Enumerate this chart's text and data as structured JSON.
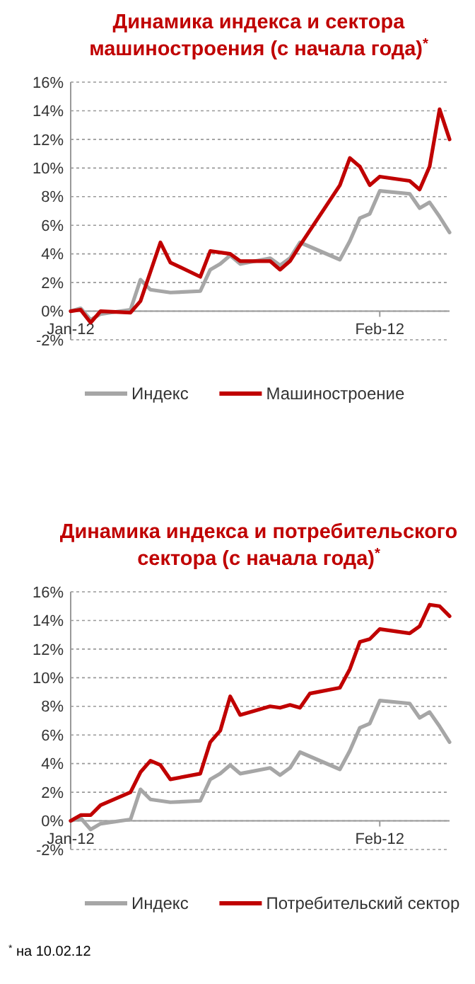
{
  "chart_data": [
    {
      "type": "line",
      "title": "Динамика индекса и сектора машиностроения (с начала года)$^{*}$",
      "x": [
        "2012-01-01",
        "2012-01-02",
        "2012-01-03",
        "2012-01-04",
        "2012-01-07",
        "2012-01-08",
        "2012-01-09",
        "2012-01-11",
        "2012-01-14",
        "2012-01-15",
        "2012-01-16",
        "2012-01-17",
        "2012-01-18",
        "2012-01-21",
        "2012-01-22",
        "2012-01-23",
        "2012-01-24",
        "2012-01-28",
        "2012-01-29",
        "2012-01-30",
        "2012-01-31",
        "2012-02-01",
        "2012-02-04",
        "2012-02-05",
        "2012-02-06",
        "2012-02-07",
        "2012-02-08"
      ],
      "series": [
        {
          "name": "Индекс",
          "color": "#a6a6a6",
          "values": [
            0,
            0.2,
            -0.6,
            -0.2,
            0.1,
            2.2,
            1.5,
            1.3,
            1.4,
            2.9,
            3.3,
            3.9,
            3.3,
            3.7,
            3.2,
            3.7,
            4.8,
            3.6,
            4.9,
            6.5,
            6.8,
            8.4,
            8.2,
            7.2,
            7.6,
            6.6,
            5.5
          ]
        },
        {
          "name": "Машиностроение",
          "color": "#c00000",
          "x": [
            "2012-01-01",
            "2012-01-02",
            "2012-01-03",
            "2012-01-04",
            "2012-01-07",
            "2012-01-08",
            "2012-01-10",
            "2012-01-11",
            "2012-01-14",
            "2012-01-15",
            "2012-01-16",
            "2012-01-17",
            "2012-01-18",
            "2012-01-21",
            "2012-01-22",
            "2012-01-23",
            "2012-01-24",
            "2012-01-28",
            "2012-01-29",
            "2012-01-30",
            "2012-01-31",
            "2012-02-01",
            "2012-02-04",
            "2012-02-05",
            "2012-02-06",
            "2012-02-07",
            "2012-02-08"
          ],
          "values": [
            0,
            0.1,
            -0.8,
            0,
            -0.1,
            0.7,
            4.8,
            3.4,
            2.4,
            4.2,
            4.1,
            4.0,
            3.5,
            3.5,
            2.9,
            3.5,
            4.6,
            8.8,
            10.7,
            10.1,
            8.8,
            9.4,
            9.1,
            8.5,
            10.1,
            14.1,
            12.0
          ]
        }
      ],
      "xlim": [
        "2012-01-01",
        "2012-02-08"
      ],
      "xticks": [
        {
          "value": "2012-01-01",
          "label": "Jan-12"
        },
        {
          "value": "2012-02-01",
          "label": "Feb-12"
        }
      ],
      "ylim": [
        -2,
        16
      ],
      "yticks": [
        {
          "value": -2,
          "label": "-2%"
        },
        {
          "value": 0,
          "label": "0%"
        },
        {
          "value": 2,
          "label": "2%"
        },
        {
          "value": 4,
          "label": "4%"
        },
        {
          "value": 6,
          "label": "6%"
        },
        {
          "value": 8,
          "label": "8%"
        },
        {
          "value": 10,
          "label": "10%"
        },
        {
          "value": 12,
          "label": "12%"
        },
        {
          "value": 14,
          "label": "14%"
        },
        {
          "value": 16,
          "label": "16%"
        }
      ],
      "grid": "y",
      "legend": "bottom",
      "line_style": "solid"
    },
    {
      "type": "line",
      "title": "Динамика индекса и потребительского сектора (с начала года)$^{*}$",
      "x": [
        "2012-01-01",
        "2012-01-02",
        "2012-01-03",
        "2012-01-04",
        "2012-01-07",
        "2012-01-08",
        "2012-01-09",
        "2012-01-11",
        "2012-01-14",
        "2012-01-15",
        "2012-01-16",
        "2012-01-17",
        "2012-01-18",
        "2012-01-21",
        "2012-01-22",
        "2012-01-23",
        "2012-01-24",
        "2012-01-28",
        "2012-01-29",
        "2012-01-30",
        "2012-01-31",
        "2012-02-01",
        "2012-02-04",
        "2012-02-05",
        "2012-02-06",
        "2012-02-07",
        "2012-02-08"
      ],
      "series": [
        {
          "name": "Индекс",
          "color": "#a6a6a6",
          "values": [
            0,
            0.2,
            -0.6,
            -0.2,
            0.1,
            2.2,
            1.5,
            1.3,
            1.4,
            2.9,
            3.3,
            3.9,
            3.3,
            3.7,
            3.2,
            3.7,
            4.8,
            3.6,
            4.9,
            6.5,
            6.8,
            8.4,
            8.2,
            7.2,
            7.6,
            6.6,
            5.5
          ]
        },
        {
          "name": "Потребительский сектор",
          "color": "#c00000",
          "x": [
            "2012-01-01",
            "2012-01-02",
            "2012-01-03",
            "2012-01-04",
            "2012-01-07",
            "2012-01-08",
            "2012-01-09",
            "2012-01-10",
            "2012-01-11",
            "2012-01-14",
            "2012-01-15",
            "2012-01-16",
            "2012-01-17",
            "2012-01-18",
            "2012-01-21",
            "2012-01-22",
            "2012-01-23",
            "2012-01-24",
            "2012-01-25",
            "2012-01-28",
            "2012-01-29",
            "2012-01-30",
            "2012-01-31",
            "2012-02-01",
            "2012-02-04",
            "2012-02-05",
            "2012-02-06",
            "2012-02-07",
            "2012-02-08"
          ],
          "values": [
            0,
            0.4,
            0.4,
            1.1,
            2.0,
            3.4,
            4.2,
            3.9,
            2.9,
            3.3,
            5.5,
            6.3,
            8.7,
            7.4,
            8.0,
            7.9,
            8.1,
            7.9,
            8.9,
            9.3,
            10.6,
            12.5,
            12.7,
            13.4,
            13.1,
            13.6,
            15.1,
            15.0,
            14.3
          ]
        }
      ],
      "xlim": [
        "2012-01-01",
        "2012-02-08"
      ],
      "xticks": [
        {
          "value": "2012-01-01",
          "label": "Jan-12"
        },
        {
          "value": "2012-02-01",
          "label": "Feb-12"
        }
      ],
      "ylim": [
        -2,
        16
      ],
      "yticks": [
        {
          "value": -2,
          "label": "-2%"
        },
        {
          "value": 0,
          "label": "0%"
        },
        {
          "value": 2,
          "label": "2%"
        },
        {
          "value": 4,
          "label": "4%"
        },
        {
          "value": 6,
          "label": "6%"
        },
        {
          "value": 8,
          "label": "8%"
        },
        {
          "value": 10,
          "label": "10%"
        },
        {
          "value": 12,
          "label": "12%"
        },
        {
          "value": 14,
          "label": "14%"
        },
        {
          "value": 16,
          "label": "16%"
        }
      ],
      "grid": "y",
      "legend": "bottom",
      "line_style": "solid",
      "annotations": [
        "$^{*}$ на 10.02.12"
      ]
    }
  ]
}
